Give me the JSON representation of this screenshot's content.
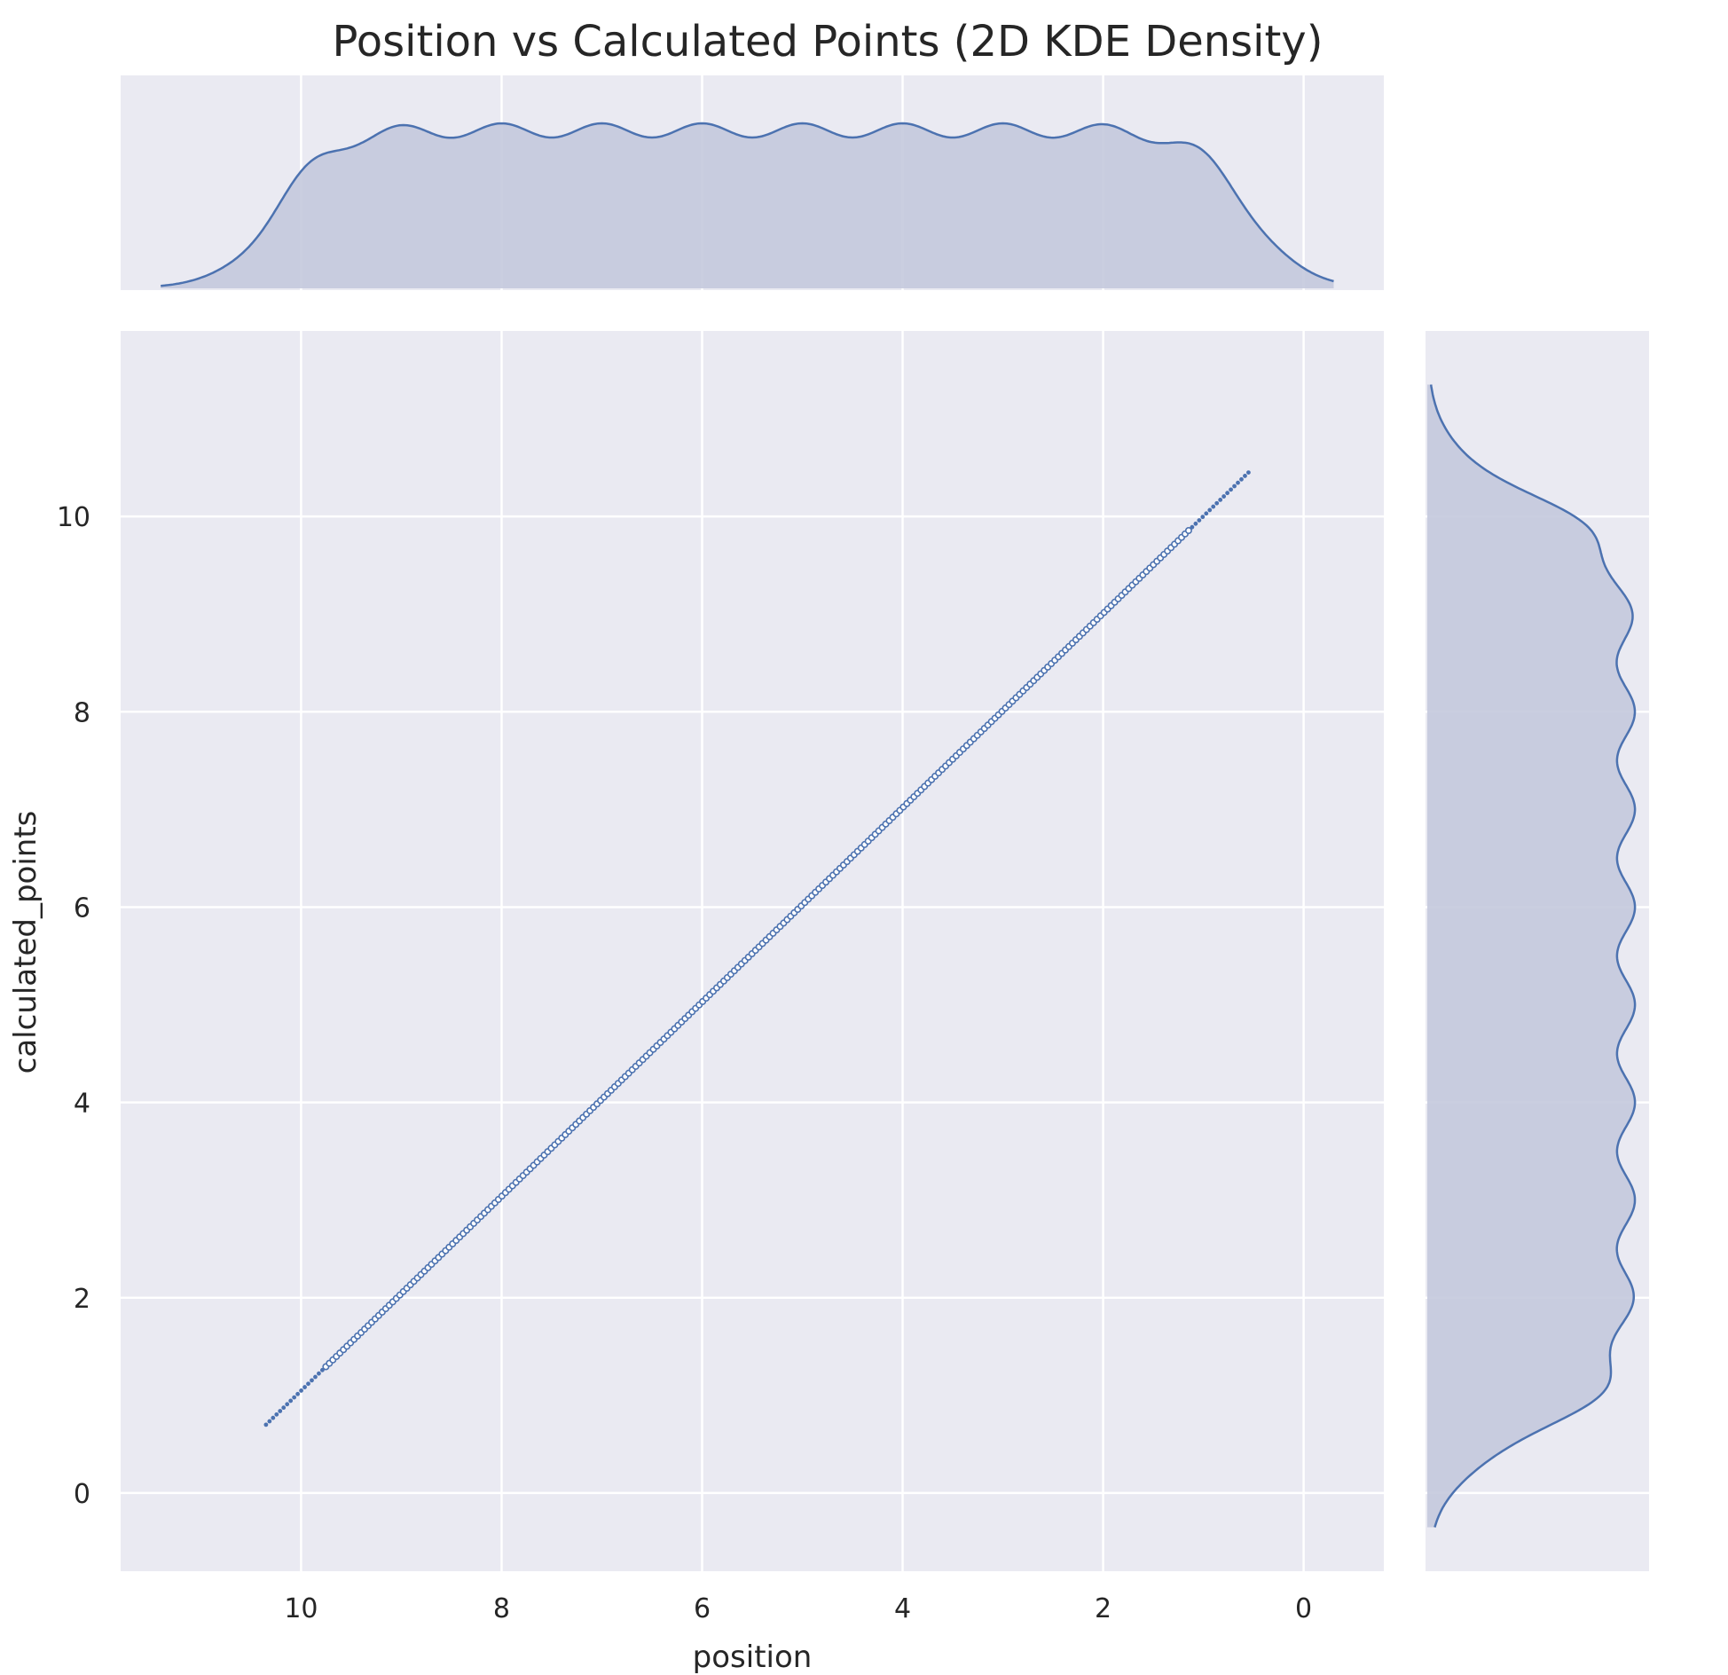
{
  "chart_data": {
    "type": "scatter",
    "title": "Position vs Calculated Points (2D KDE Density)",
    "xlabel": "position",
    "ylabel": "calculated_points",
    "x_axis_inverted": true,
    "x_ticks": [
      10,
      8,
      6,
      4,
      2,
      0
    ],
    "y_ticks": [
      0,
      2,
      4,
      6,
      8,
      10
    ],
    "xlim": [
      11.8,
      -0.8
    ],
    "ylim": [
      -0.8,
      11.9
    ],
    "grid": true,
    "background_color": "#eaeaf2",
    "series_color": "#4c72b0",
    "fill_color": "#c4c9dd",
    "points": {
      "x_start": 10.35,
      "x_end": 0.55,
      "y_start": 0.7,
      "y_end": 10.45,
      "relation": "calculated_points ≈ 11 - position",
      "count": 280
    },
    "marginal_x": {
      "description": "KDE of position, roughly flat between 1 and 10",
      "density_range": [
        -0.3,
        11.4
      ]
    },
    "marginal_y": {
      "description": "KDE of calculated_points, roughly flat between 1 and 10",
      "density_range": [
        -0.35,
        11.35
      ]
    }
  }
}
